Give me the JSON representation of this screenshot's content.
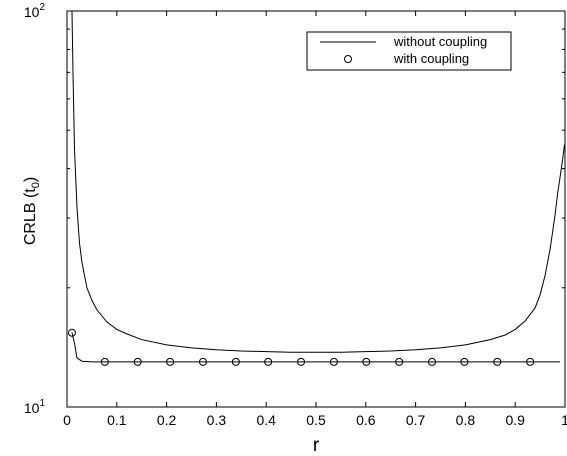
{
  "chart_data": {
    "type": "line",
    "xlabel": "r",
    "ylabel_main": "CRLB (t",
    "ylabel_sub": "0",
    "ylabel_close": ")",
    "xlim": [
      0,
      1
    ],
    "ylim": [
      10,
      100
    ],
    "y_scale": "log",
    "grid": false,
    "legend_position": "top-right",
    "x_ticks": [
      {
        "value": 0,
        "label": "0"
      },
      {
        "value": 0.1,
        "label": "0.1"
      },
      {
        "value": 0.2,
        "label": "0.2"
      },
      {
        "value": 0.3,
        "label": "0.3"
      },
      {
        "value": 0.4,
        "label": "0.4"
      },
      {
        "value": 0.5,
        "label": "0.5"
      },
      {
        "value": 0.6,
        "label": "0.6"
      },
      {
        "value": 0.7,
        "label": "0.7"
      },
      {
        "value": 0.8,
        "label": "0.8"
      },
      {
        "value": 0.9,
        "label": "0.9"
      },
      {
        "value": 1,
        "label": "1"
      }
    ],
    "y_ticks": [
      {
        "value": 10,
        "base": "10",
        "exp": "1"
      },
      {
        "value": 100,
        "base": "10",
        "exp": "2"
      }
    ],
    "series": [
      {
        "name": "without coupling",
        "style": "line",
        "color": "#000000",
        "x": [
          0.01,
          0.012,
          0.015,
          0.02,
          0.025,
          0.03,
          0.04,
          0.05,
          0.06,
          0.08,
          0.1,
          0.12,
          0.15,
          0.2,
          0.25,
          0.3,
          0.35,
          0.4,
          0.45,
          0.5,
          0.55,
          0.6,
          0.65,
          0.7,
          0.75,
          0.8,
          0.85,
          0.88,
          0.9,
          0.92,
          0.94,
          0.95,
          0.96,
          0.97,
          0.98,
          0.985,
          0.99,
          0.995,
          0.999
        ],
        "y": [
          100,
          70,
          45,
          32,
          26,
          23.2,
          20.0,
          18.6,
          17.6,
          16.4,
          15.7,
          15.3,
          14.8,
          14.35,
          14.1,
          13.95,
          13.85,
          13.8,
          13.75,
          13.75,
          13.75,
          13.8,
          13.85,
          13.95,
          14.1,
          14.35,
          14.8,
          15.2,
          15.7,
          16.5,
          17.8,
          19.2,
          21.5,
          25.0,
          30.5,
          34.5,
          38,
          42,
          46
        ]
      },
      {
        "name": "with coupling",
        "style": "line",
        "color": "#000000",
        "x": [
          0.01,
          0.015,
          0.02,
          0.03,
          0.05,
          0.1,
          0.2,
          0.3,
          0.4,
          0.5,
          0.6,
          0.7,
          0.8,
          0.9,
          0.99
        ],
        "y": [
          15.4,
          14.5,
          13.3,
          13.05,
          13.0,
          13.0,
          13.0,
          13.0,
          13.0,
          13.0,
          13.0,
          13.0,
          13.0,
          13.0,
          13.0
        ]
      },
      {
        "name": "with coupling",
        "style": "markers",
        "marker": "circle",
        "color": "#000000",
        "x": [
          0.01,
          0.076,
          0.142,
          0.207,
          0.273,
          0.339,
          0.404,
          0.47,
          0.536,
          0.601,
          0.667,
          0.733,
          0.798,
          0.864,
          0.93
        ],
        "y": [
          15.4,
          13.0,
          13.0,
          13.0,
          13.0,
          13.0,
          13.0,
          13.0,
          13.0,
          13.0,
          13.0,
          13.0,
          13.0,
          13.0,
          13.0
        ]
      }
    ],
    "legend": [
      {
        "label": "without coupling",
        "symbol": "line"
      },
      {
        "label": "with coupling",
        "symbol": "circle"
      }
    ]
  }
}
